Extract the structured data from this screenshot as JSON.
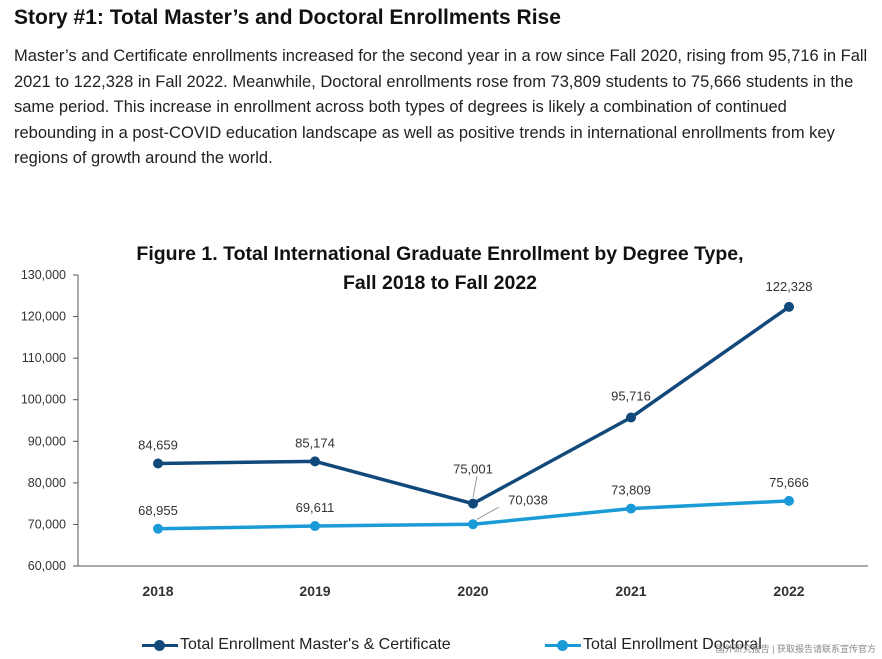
{
  "story": {
    "title": "Story #1: Total Master’s and Doctoral Enrollments Rise",
    "body": "Master’s and Certificate enrollments increased for the second year in a row since Fall 2020, rising from 95,716 in Fall 2021 to 122,328 in Fall 2022. Meanwhile, Doctoral enrollments rose from 73,809 students to 75,666 students in the same period. This increase in enrollment across both types of degrees is likely a combination of continued rebounding in a post-COVID education landscape as well as positive trends in international enrollments from key regions of growth around the world."
  },
  "chart_data": {
    "type": "line",
    "title_line1": "Figure 1. Total International Graduate Enrollment by Degree Type,",
    "title_line2": "Fall 2018 to Fall 2022",
    "xlabel": "",
    "ylabel": "",
    "categories": [
      "2018",
      "2019",
      "2020",
      "2021",
      "2022"
    ],
    "ylim": [
      60000,
      130000
    ],
    "yticks": [
      60000,
      70000,
      80000,
      90000,
      100000,
      110000,
      120000,
      130000
    ],
    "ytick_labels": [
      "60,000",
      "70,000",
      "80,000",
      "90,000",
      "100,000",
      "110,000",
      "120,000",
      "130,000"
    ],
    "grid": false,
    "legend_position": "bottom",
    "series": [
      {
        "name": "Total Enrollment Master's & Certificate",
        "color": "#114a7a",
        "values": [
          84659,
          85174,
          75001,
          95716,
          122328
        ],
        "labels": [
          "84,659",
          "85,174",
          "75,001",
          "95,716",
          "122,328"
        ]
      },
      {
        "name": "Total Enrollment Doctoral",
        "color": "#1a9ad6",
        "values": [
          68955,
          69611,
          70038,
          73809,
          75666
        ],
        "labels": [
          "68,955",
          "69,611",
          "70,038",
          "73,809",
          "75,666"
        ]
      }
    ]
  },
  "watermark": "国外研究报告 | 获取报告请联系宣传官方"
}
